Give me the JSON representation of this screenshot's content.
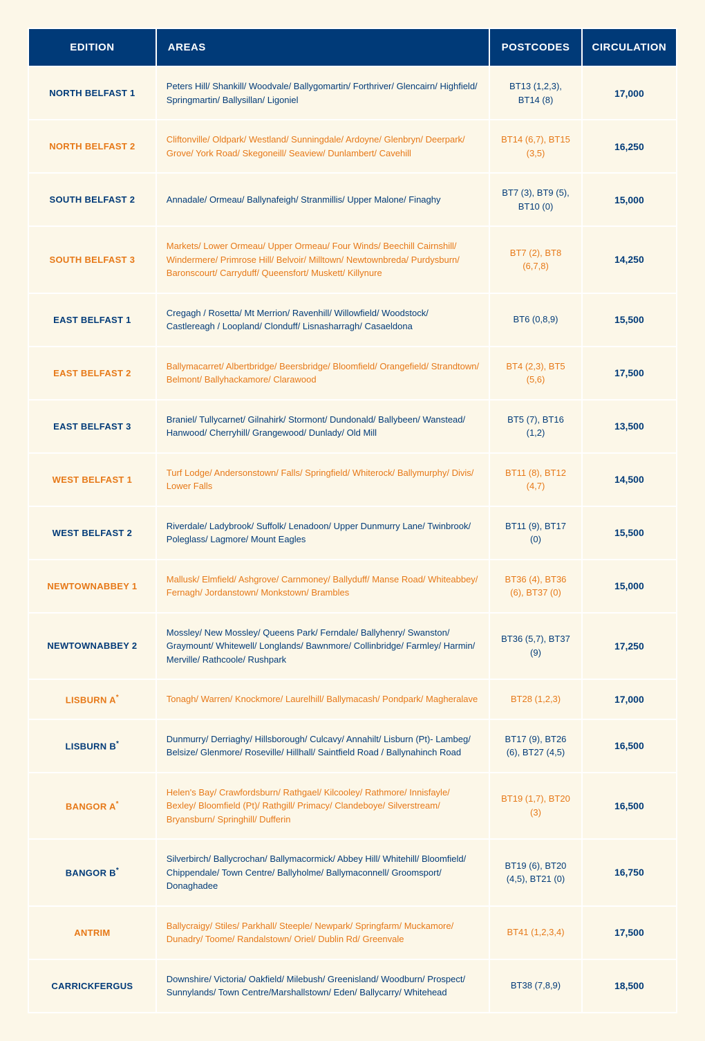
{
  "headers": {
    "edition": "EDITION",
    "areas": "AREAS",
    "postcodes": "POSTCODES",
    "circulation": "CIRCULATION"
  },
  "rows": [
    {
      "edition": "NORTH BELFAST 1",
      "areas": "Peters Hill/ Shankill/ Woodvale/ Ballygomartin/ Forthriver/ Glencairn/ Highfield/ Springmartin/ Ballysillan/ Ligoniel",
      "postcodes": "BT13 (1,2,3), BT14 (8)",
      "circulation": "17,000",
      "highlight": false
    },
    {
      "edition": "NORTH BELFAST 2",
      "areas": "Cliftonville/ Oldpark/ Westland/ Sunningdale/ Ardoyne/ Glenbryn/ Deerpark/ Grove/ York Road/ Skegoneill/ Seaview/ Dunlambert/ Cavehill",
      "postcodes": "BT14 (6,7), BT15 (3,5)",
      "circulation": "16,250",
      "highlight": true
    },
    {
      "edition": "SOUTH BELFAST 2",
      "areas": "Annadale/ Ormeau/ Ballynafeigh/ Stranmillis/ Upper Malone/ Finaghy",
      "postcodes": "BT7 (3), BT9 (5), BT10 (0)",
      "circulation": "15,000",
      "highlight": false
    },
    {
      "edition": "SOUTH BELFAST 3",
      "areas": "Markets/ Lower Ormeau/ Upper Ormeau/ Four Winds/ Beechill Cairnshill/ Windermere/ Primrose Hill/ Belvoir/ Milltown/ Newtownbreda/ Purdysburn/ Baronscourt/ Carryduff/ Queensfort/ Muskett/ Killynure",
      "postcodes": "BT7 (2), BT8 (6,7,8)",
      "circulation": "14,250",
      "highlight": true
    },
    {
      "edition": "EAST BELFAST 1",
      "areas": "Cregagh / Rosetta/ Mt Merrion/ Ravenhill/ Willowfield/ Woodstock/ Castlereagh / Loopland/ Clonduff/ Lisnasharragh/ Casaeldona",
      "postcodes": "BT6 (0,8,9)",
      "circulation": "15,500",
      "highlight": false
    },
    {
      "edition": "EAST BELFAST 2",
      "areas": "Ballymacarret/ Albertbridge/ Beersbridge/ Bloomfield/ Orangefield/ Strandtown/ Belmont/ Ballyhackamore/ Clarawood",
      "postcodes": "BT4 (2,3), BT5 (5,6)",
      "circulation": "17,500",
      "highlight": true
    },
    {
      "edition": "EAST BELFAST 3",
      "areas": "Braniel/ Tullycarnet/ Gilnahirk/ Stormont/ Dundonald/ Ballybeen/ Wanstead/ Hanwood/ Cherryhill/ Grangewood/ Dunlady/ Old Mill",
      "postcodes": "BT5 (7), BT16 (1,2)",
      "circulation": "13,500",
      "highlight": false
    },
    {
      "edition": "WEST BELFAST 1",
      "areas": "Turf Lodge/ Andersonstown/ Falls/ Springfield/ Whiterock/ Ballymurphy/ Divis/ Lower Falls",
      "postcodes": "BT11 (8), BT12 (4,7)",
      "circulation": "14,500",
      "highlight": true
    },
    {
      "edition": "WEST BELFAST 2",
      "areas": "Riverdale/ Ladybrook/ Suffolk/ Lenadoon/ Upper Dunmurry Lane/ Twinbrook/ Poleglass/ Lagmore/ Mount Eagles",
      "postcodes": "BT11 (9), BT17 (0)",
      "circulation": "15,500",
      "highlight": false
    },
    {
      "edition": "NEWTOWNABBEY 1",
      "areas": "Mallusk/ Elmfield/ Ashgrove/ Carnmoney/ Ballyduff/ Manse Road/ Whiteabbey/ Fernagh/ Jordanstown/ Monkstown/ Brambles",
      "postcodes": "BT36 (4), BT36 (6), BT37 (0)",
      "circulation": "15,000",
      "highlight": true
    },
    {
      "edition": "NEWTOWNABBEY 2",
      "areas": "Mossley/ New Mossley/ Queens Park/ Ferndale/ Ballyhenry/ Swanston/ Graymount/ Whitewell/ Longlands/ Bawnmore/ Collinbridge/ Farmley/ Harmin/ Merville/ Rathcoole/ Rushpark",
      "postcodes": "BT36 (5,7), BT37 (9)",
      "circulation": "17,250",
      "highlight": false
    },
    {
      "edition": "LISBURN A",
      "asterisk": "*",
      "areas": "Tonagh/ Warren/ Knockmore/ Laurelhill/ Ballymacash/ Pondpark/ Magheralave",
      "postcodes": "BT28 (1,2,3)",
      "circulation": "17,000",
      "highlight": true
    },
    {
      "edition": "LISBURN B",
      "asterisk": "*",
      "areas": "Dunmurry/ Derriaghy/ Hillsborough/ Culcavy/ Annahilt/ Lisburn (Pt)- Lambeg/ Belsize/ Glenmore/ Roseville/ Hillhall/ Saintfield Road / Ballynahinch Road",
      "postcodes": "BT17 (9), BT26 (6), BT27 (4,5)",
      "circulation": "16,500",
      "highlight": false
    },
    {
      "edition": "BANGOR A",
      "asterisk": "*",
      "areas": "Helen's Bay/ Crawfordsburn/ Rathgael/ Kilcooley/ Rathmore/ Innisfayle/ Bexley/ Bloomfield (Pt)/ Rathgill/ Primacy/ Clandeboye/ Silverstream/ Bryansburn/ Springhill/ Dufferin",
      "postcodes": "BT19 (1,7), BT20 (3)",
      "circulation": "16,500",
      "highlight": true
    },
    {
      "edition": "BANGOR B",
      "asterisk": "*",
      "areas": "Silverbirch/ Ballycrochan/ Ballymacormick/ Abbey Hill/ Whitehill/ Bloomfield/ Chippendale/ Town Centre/ Ballyholme/ Ballymaconnell/ Groomsport/ Donaghadee",
      "postcodes": "BT19 (6), BT20 (4,5), BT21 (0)",
      "circulation": "16,750",
      "highlight": false
    },
    {
      "edition": "ANTRIM",
      "areas": "Ballycraigy/ Stiles/ Parkhall/ Steeple/ Newpark/ Springfarm/ Muckamore/ Dunadry/ Toome/ Randalstown/ Oriel/ Dublin Rd/ Greenvale",
      "postcodes": "BT41 (1,2,3,4)",
      "circulation": "17,500",
      "highlight": true
    },
    {
      "edition": "CARRICKFERGUS",
      "areas": "Downshire/ Victoria/ Oakfield/ Milebush/ Greenisland/ Woodburn/ Prospect/ Sunnylands/ Town Centre/Marshallstown/ Eden/ Ballycarry/ Whitehead",
      "postcodes": "BT38 (7,8,9)",
      "circulation": "18,500",
      "highlight": false
    }
  ]
}
